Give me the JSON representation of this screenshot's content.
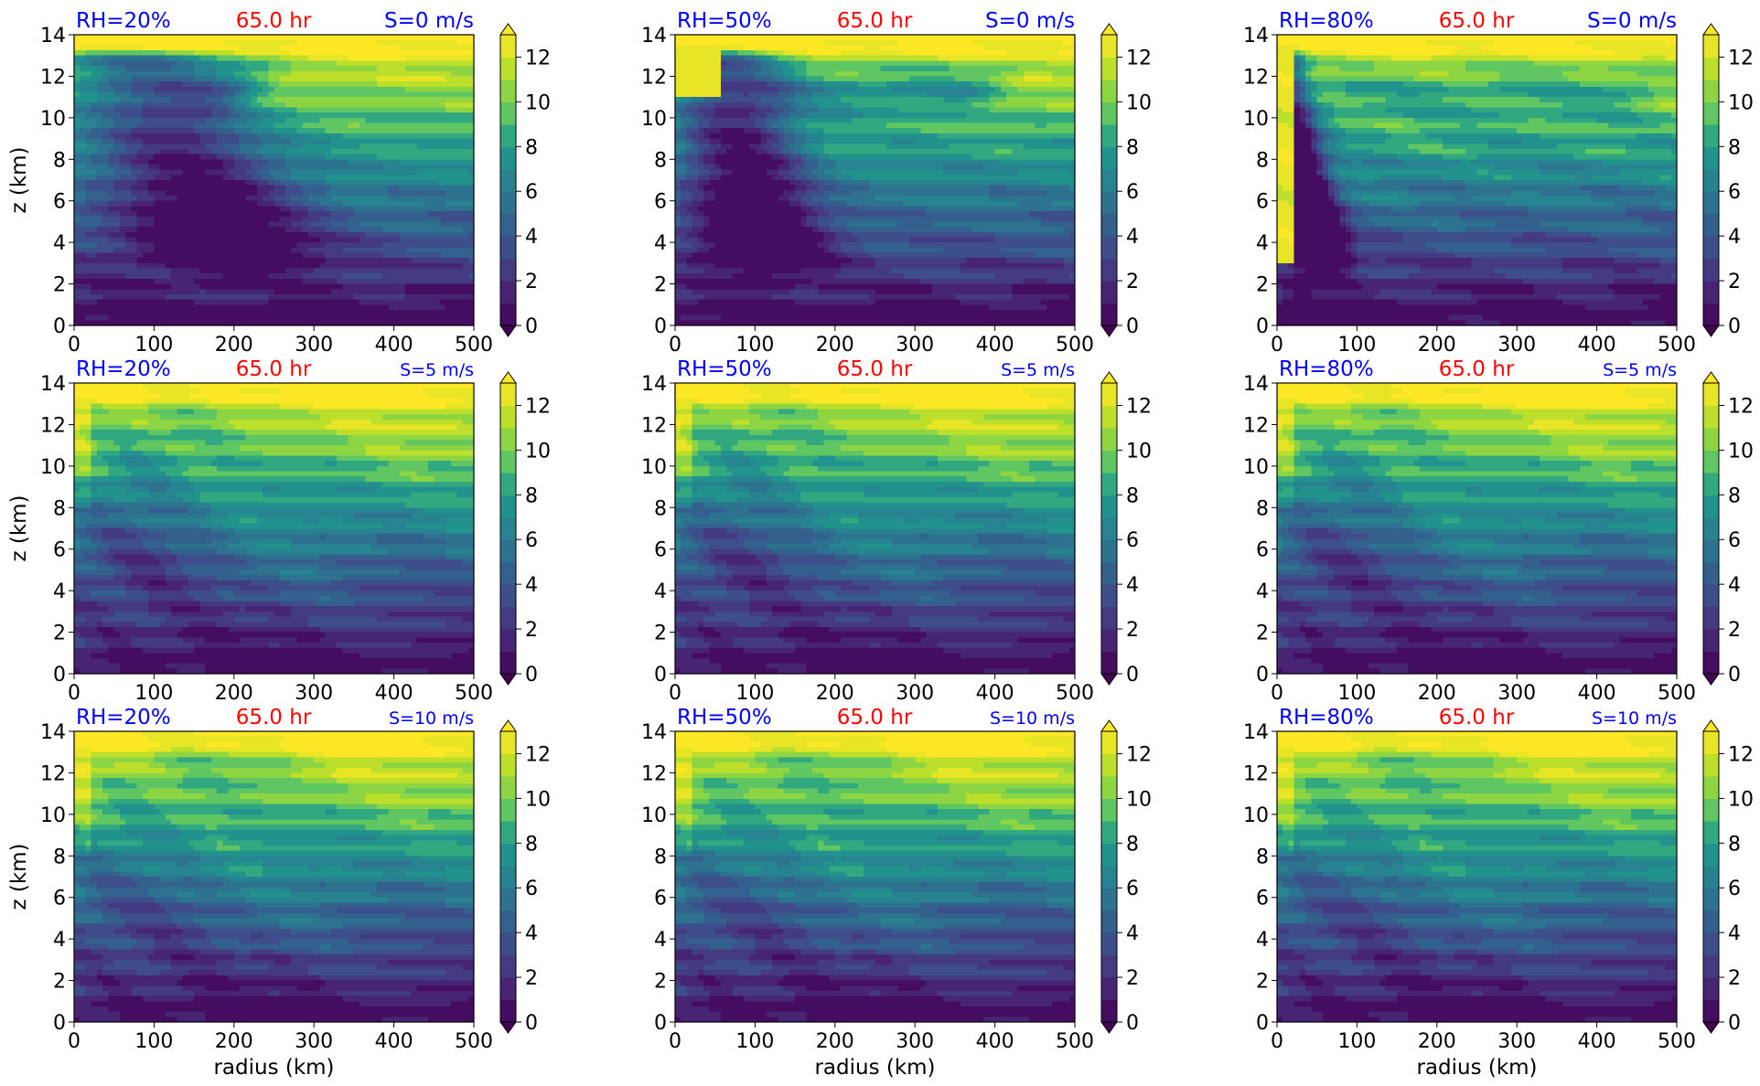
{
  "chart_data": {
    "type": "heatmap",
    "layout": {
      "rows": 3,
      "cols": 3
    },
    "colorbar": {
      "ticks": [
        "0",
        "2",
        "4",
        "6",
        "8",
        "10",
        "12"
      ],
      "tick_values": [
        0,
        2,
        4,
        6,
        8,
        10,
        12
      ],
      "range": [
        0,
        13
      ],
      "extend": "both",
      "colormap": "viridis"
    },
    "x_axis": {
      "label": "radius (km)",
      "range": [
        0,
        500
      ],
      "ticks": [
        "0",
        "100",
        "200",
        "300",
        "400",
        "500"
      ],
      "tick_values": [
        0,
        100,
        200,
        300,
        400,
        500
      ]
    },
    "y_axis": {
      "label": "z (km)",
      "range": [
        0,
        14
      ],
      "ticks": [
        "0",
        "2",
        "4",
        "6",
        "8",
        "10",
        "12",
        "14"
      ],
      "tick_values": [
        0,
        2,
        4,
        6,
        8,
        10,
        12,
        14
      ]
    },
    "colors": {
      "left_title": "#0000ff",
      "center_title": "#ff0000",
      "right_title": "#0000ff"
    },
    "panels": [
      {
        "rh": 20,
        "shear": 0,
        "left_title": "RH=20%",
        "center_title": "65.0 hr",
        "right_title": "S=0 m/s",
        "right_title_small": false
      },
      {
        "rh": 50,
        "shear": 0,
        "left_title": "RH=50%",
        "center_title": "65.0 hr",
        "right_title": "S=0 m/s",
        "right_title_small": false
      },
      {
        "rh": 80,
        "shear": 0,
        "left_title": "RH=80%",
        "center_title": "65.0 hr",
        "right_title": "S=0 m/s",
        "right_title_small": false
      },
      {
        "rh": 20,
        "shear": 5,
        "left_title": "RH=20%",
        "center_title": "65.0 hr",
        "right_title": "S=5 m/s",
        "right_title_small": true
      },
      {
        "rh": 50,
        "shear": 5,
        "left_title": "RH=50%",
        "center_title": "65.0 hr",
        "right_title": "S=5 m/s",
        "right_title_small": true
      },
      {
        "rh": 80,
        "shear": 5,
        "left_title": "RH=80%",
        "center_title": "65.0 hr",
        "right_title": "S=5 m/s",
        "right_title_small": true
      },
      {
        "rh": 20,
        "shear": 10,
        "left_title": "RH=20%",
        "center_title": "65.0 hr",
        "right_title": "S=10 m/s",
        "right_title_small": true
      },
      {
        "rh": 50,
        "shear": 10,
        "left_title": "RH=50%",
        "center_title": "65.0 hr",
        "right_title": "S=10 m/s",
        "right_title_small": true
      },
      {
        "rh": 80,
        "shear": 10,
        "left_title": "RH=80%",
        "center_title": "65.0 hr",
        "right_title": "S=10 m/s",
        "right_title_small": true
      }
    ]
  }
}
